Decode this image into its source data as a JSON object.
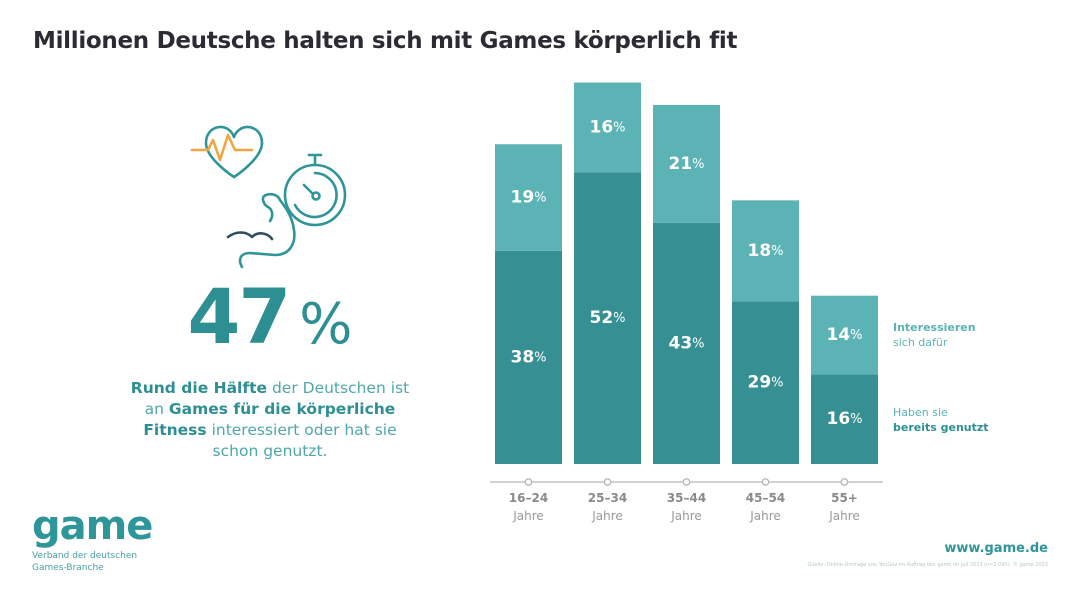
{
  "header": {
    "title": "Millionen Deutsche halten sich mit Games körperlich fit"
  },
  "icons": [
    "heart-rate-icon",
    "stopwatch-icon",
    "muscle-arm-icon"
  ],
  "highlight": {
    "value": "47",
    "unit": "%",
    "text_parts": [
      {
        "t": "Rund die Hälfte",
        "bold": true
      },
      {
        "t": " der Deutschen ist an ",
        "bold": false
      },
      {
        "t": "Games für die körperliche Fitness",
        "bold": true
      },
      {
        "t": " interessiert oder hat sie schon genutzt.",
        "bold": false
      }
    ]
  },
  "legend": {
    "interested_line1": "Interessieren",
    "interested_line2": "sich dafür",
    "used_line1": "Haben sie",
    "used_line2": "bereits genutzt"
  },
  "footer": {
    "logo_word": "game",
    "logo_sub1": "Verband der deutschen",
    "logo_sub2": "Games-Branche",
    "url": "www.game.de",
    "source": "Quelle: Online-Umfrage von YouGov im Auftrag des game im Juli 2023 (n=2.095). © game 2023"
  },
  "colors": {
    "used": "#358f93",
    "interested": "#5cb3b5",
    "title": "#2b2b33",
    "accent": "#2e8f93",
    "pulse": "#f0a640",
    "axis": "#b7b7b7",
    "ticklabel": "#8a8a8a"
  },
  "chart_data": {
    "type": "bar",
    "stacked": true,
    "title": "Millionen Deutsche halten sich mit Games körperlich fit",
    "categories": [
      "16–24",
      "25–34",
      "35–44",
      "45–54",
      "55+"
    ],
    "category_sublabel": "Jahre",
    "series": [
      {
        "name": "Haben sie bereits genutzt",
        "values": [
          38,
          52,
          43,
          29,
          16
        ]
      },
      {
        "name": "Interessieren sich dafür",
        "values": [
          19,
          16,
          21,
          18,
          14
        ]
      }
    ],
    "value_suffix": "%",
    "ylim": [
      0,
      70
    ],
    "grid": false,
    "legend_position": "right"
  }
}
